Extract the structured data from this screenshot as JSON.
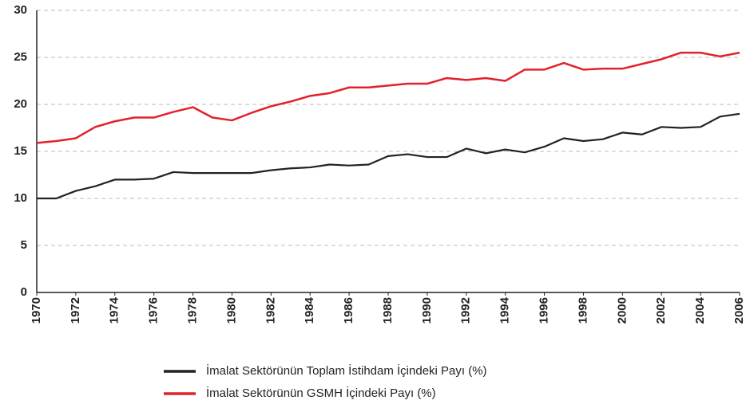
{
  "chart_data": {
    "type": "line",
    "x": [
      1970,
      1971,
      1972,
      1973,
      1974,
      1975,
      1976,
      1977,
      1978,
      1979,
      1980,
      1981,
      1982,
      1983,
      1984,
      1985,
      1986,
      1987,
      1988,
      1989,
      1990,
      1991,
      1992,
      1993,
      1994,
      1995,
      1996,
      1997,
      1998,
      1999,
      2000,
      2001,
      2002,
      2003,
      2004,
      2005,
      2006
    ],
    "series": [
      {
        "name": "İmalat Sektörünün Toplam İstihdam İçindeki Payı (%)",
        "color": "#222222",
        "values": [
          10.0,
          10.0,
          10.8,
          11.3,
          12.0,
          12.0,
          12.1,
          12.8,
          12.7,
          12.7,
          12.7,
          12.7,
          13.0,
          13.2,
          13.3,
          13.6,
          13.5,
          13.6,
          14.5,
          14.7,
          14.4,
          14.4,
          15.3,
          14.8,
          15.2,
          14.9,
          15.5,
          16.4,
          16.1,
          16.3,
          17.0,
          16.8,
          17.6,
          17.5,
          17.6,
          18.7,
          19.0
        ]
      },
      {
        "name": "İmalat Sektörünün GSMH İçindeki Payı (%)",
        "color": "#e3202a",
        "values": [
          15.9,
          16.1,
          16.4,
          17.6,
          18.2,
          18.6,
          18.6,
          19.2,
          19.7,
          18.6,
          18.3,
          19.1,
          19.8,
          20.3,
          20.9,
          21.2,
          21.8,
          21.8,
          22.0,
          22.2,
          22.2,
          22.8,
          22.6,
          22.8,
          22.5,
          23.7,
          23.7,
          24.4,
          23.7,
          23.8,
          23.8,
          24.3,
          24.8,
          25.5,
          25.5,
          25.1,
          25.5
        ]
      }
    ],
    "xlim": [
      1970,
      2006
    ],
    "xticks": [
      1970,
      1972,
      1974,
      1976,
      1978,
      1980,
      1982,
      1984,
      1986,
      1988,
      1990,
      1992,
      1994,
      1996,
      1998,
      2000,
      2002,
      2004,
      2006
    ],
    "ylim": [
      0,
      30
    ],
    "yticks": [
      0,
      5,
      10,
      15,
      20,
      25,
      30
    ],
    "grid": true
  }
}
